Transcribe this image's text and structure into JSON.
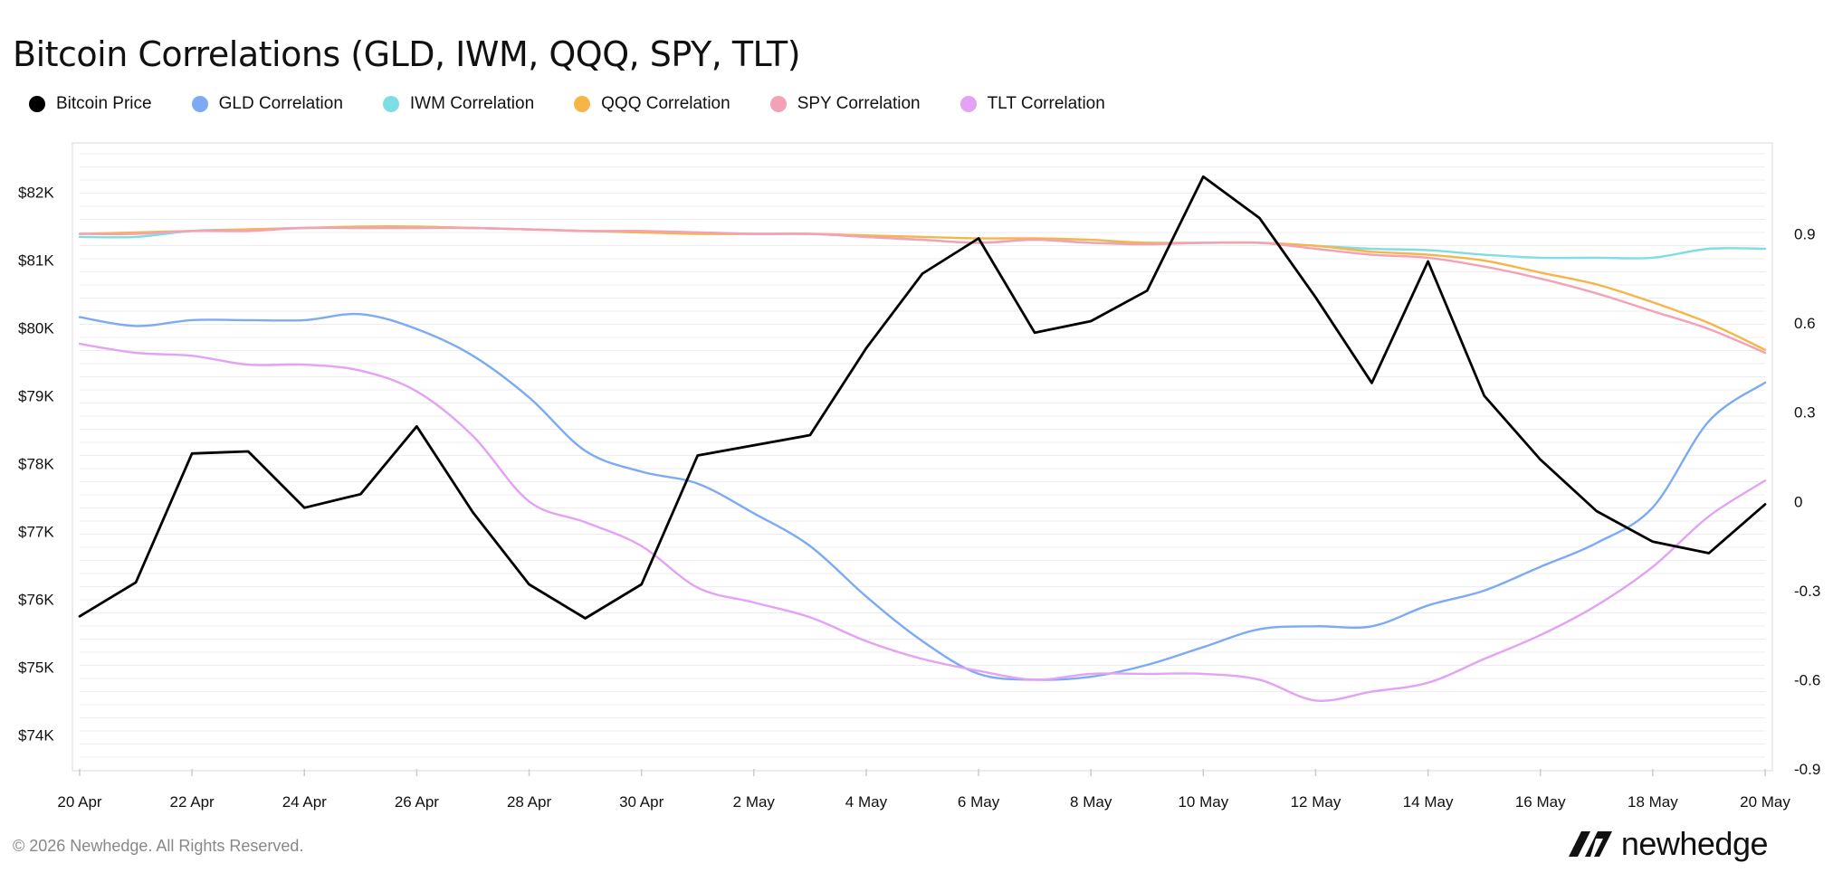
{
  "title": "Bitcoin Correlations (GLD, IWM, QQQ, SPY, TLT)",
  "footer": "© 2026 Newhedge. All Rights Reserved.",
  "brand": {
    "name": "newhedge",
    "icon": "newhedge-logo-icon"
  },
  "legend": [
    {
      "label": "Bitcoin Price",
      "color": "#000000"
    },
    {
      "label": "GLD Correlation",
      "color": "#7cabf4"
    },
    {
      "label": "IWM Correlation",
      "color": "#7fdde6"
    },
    {
      "label": "QQQ Correlation",
      "color": "#f5b548"
    },
    {
      "label": "SPY Correlation",
      "color": "#f4a1b6"
    },
    {
      "label": "TLT Correlation",
      "color": "#e3a2f3"
    }
  ],
  "chart_data": {
    "type": "line",
    "title": "Bitcoin Correlations (GLD, IWM, QQQ, SPY, TLT)",
    "x": [
      "20 Apr",
      "21 Apr",
      "22 Apr",
      "23 Apr",
      "24 Apr",
      "25 Apr",
      "26 Apr",
      "27 Apr",
      "28 Apr",
      "29 Apr",
      "30 Apr",
      "1 May",
      "2 May",
      "3 May",
      "4 May",
      "5 May",
      "6 May",
      "7 May",
      "8 May",
      "9 May",
      "10 May",
      "11 May",
      "12 May",
      "13 May",
      "14 May",
      "15 May",
      "16 May",
      "17 May",
      "18 May",
      "19 May",
      "20 May"
    ],
    "x_tick_labels": [
      "20 Apr",
      "22 Apr",
      "24 Apr",
      "26 Apr",
      "28 Apr",
      "30 Apr",
      "2 May",
      "4 May",
      "6 May",
      "8 May",
      "10 May",
      "12 May",
      "14 May",
      "16 May",
      "18 May",
      "20 May"
    ],
    "y_left": {
      "ticks": [
        "$74K",
        "$75K",
        "$76K",
        "$77K",
        "$78K",
        "$79K",
        "$80K",
        "$81K",
        "$82K"
      ],
      "range": [
        73500,
        82700
      ]
    },
    "y_right": {
      "ticks": [
        "-0.9",
        "-0.6",
        "-0.3",
        "0",
        "0.3",
        "0.6",
        "0.9"
      ],
      "range": [
        -0.9,
        1.2
      ]
    },
    "grid": true,
    "legend_position": "top-left",
    "series": [
      {
        "name": "Bitcoin Price",
        "axis": "left",
        "color": "#000000",
        "values": [
          75750,
          76250,
          78150,
          78180,
          77350,
          77550,
          78550,
          77280,
          76220,
          75720,
          76220,
          78120,
          78270,
          78420,
          79700,
          80800,
          81320,
          79930,
          80100,
          80550,
          82230,
          81620,
          80450,
          79190,
          80980,
          79000,
          78060,
          77300,
          76850,
          76680,
          77400
        ]
      },
      {
        "name": "GLD Correlation",
        "axis": "right",
        "color": "#7cabf4",
        "values": [
          0.62,
          0.59,
          0.61,
          0.61,
          0.61,
          0.63,
          0.58,
          0.49,
          0.35,
          0.17,
          0.1,
          0.06,
          -0.04,
          -0.15,
          -0.32,
          -0.47,
          -0.58,
          -0.6,
          -0.59,
          -0.55,
          -0.49,
          -0.43,
          -0.42,
          -0.42,
          -0.35,
          -0.3,
          -0.22,
          -0.14,
          -0.02,
          0.27,
          0.4
        ]
      },
      {
        "name": "IWM Correlation",
        "axis": "right",
        "color": "#7fdde6",
        "values": [
          0.89,
          0.89,
          0.91,
          0.915,
          0.92,
          0.92,
          0.92,
          0.92,
          0.915,
          0.91,
          0.905,
          0.905,
          0.9,
          0.9,
          0.89,
          0.88,
          0.87,
          0.88,
          0.87,
          0.87,
          0.87,
          0.87,
          0.86,
          0.85,
          0.845,
          0.83,
          0.82,
          0.82,
          0.82,
          0.85,
          0.85
        ]
      },
      {
        "name": "QQQ Correlation",
        "axis": "right",
        "color": "#f5b548",
        "values": [
          0.9,
          0.905,
          0.91,
          0.915,
          0.92,
          0.925,
          0.925,
          0.92,
          0.915,
          0.91,
          0.905,
          0.9,
          0.9,
          0.9,
          0.895,
          0.89,
          0.885,
          0.885,
          0.88,
          0.87,
          0.87,
          0.87,
          0.86,
          0.84,
          0.83,
          0.81,
          0.77,
          0.73,
          0.67,
          0.6,
          0.51
        ]
      },
      {
        "name": "SPY Correlation",
        "axis": "right",
        "color": "#f4a1b6",
        "values": [
          0.9,
          0.9,
          0.91,
          0.91,
          0.92,
          0.92,
          0.92,
          0.92,
          0.915,
          0.91,
          0.91,
          0.905,
          0.9,
          0.9,
          0.89,
          0.88,
          0.87,
          0.88,
          0.87,
          0.865,
          0.87,
          0.87,
          0.85,
          0.83,
          0.82,
          0.79,
          0.75,
          0.7,
          0.64,
          0.58,
          0.5
        ]
      },
      {
        "name": "TLT Correlation",
        "axis": "right",
        "color": "#e3a2f3",
        "values": [
          0.53,
          0.5,
          0.49,
          0.46,
          0.46,
          0.44,
          0.37,
          0.22,
          0.0,
          -0.07,
          -0.15,
          -0.29,
          -0.34,
          -0.39,
          -0.47,
          -0.53,
          -0.57,
          -0.6,
          -0.58,
          -0.58,
          -0.58,
          -0.6,
          -0.67,
          -0.64,
          -0.61,
          -0.53,
          -0.45,
          -0.35,
          -0.22,
          -0.05,
          0.07
        ]
      }
    ]
  }
}
